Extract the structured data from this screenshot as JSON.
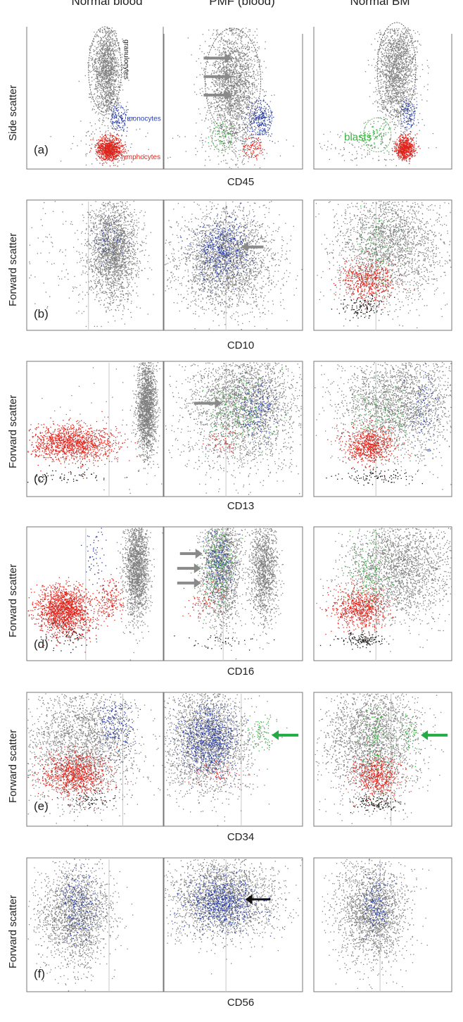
{
  "columns": [
    "Normal blood",
    "PMF (blood)",
    "Normal BM"
  ],
  "rows": [
    {
      "letter": "(a)",
      "ylabel": "Side scatter",
      "xlabel": "CD45"
    },
    {
      "letter": "(b)",
      "ylabel": "Forward scatter",
      "xlabel": "CD10"
    },
    {
      "letter": "(c)",
      "ylabel": "Forward scatter",
      "xlabel": "CD13"
    },
    {
      "letter": "(d)",
      "ylabel": "Forward scatter",
      "xlabel": "CD16"
    },
    {
      "letter": "(e)",
      "ylabel": "Forward scatter",
      "xlabel": "CD34"
    },
    {
      "letter": "(f)",
      "ylabel": "Forward scatter",
      "xlabel": "CD56"
    }
  ],
  "annotations": {
    "granulocytes": "granulocytes",
    "monocytes": "monocytes",
    "lymphocytes": "lymphocytes",
    "blasts": "blasts"
  },
  "colors": {
    "gray": "#7f7f7f",
    "red": "#e0241b",
    "blue": "#2b3fa8",
    "green": "#3cb043",
    "black": "#111111",
    "arrow_gray": "#8a8a8a",
    "arrow_green": "#22aa44"
  },
  "chart_data": {
    "type": "scatter",
    "panels": 18,
    "layout": "6 rows x 3 columns of flow cytometry dot plots",
    "series_colors": [
      "gray",
      "red",
      "blue",
      "green",
      "black"
    ]
  }
}
